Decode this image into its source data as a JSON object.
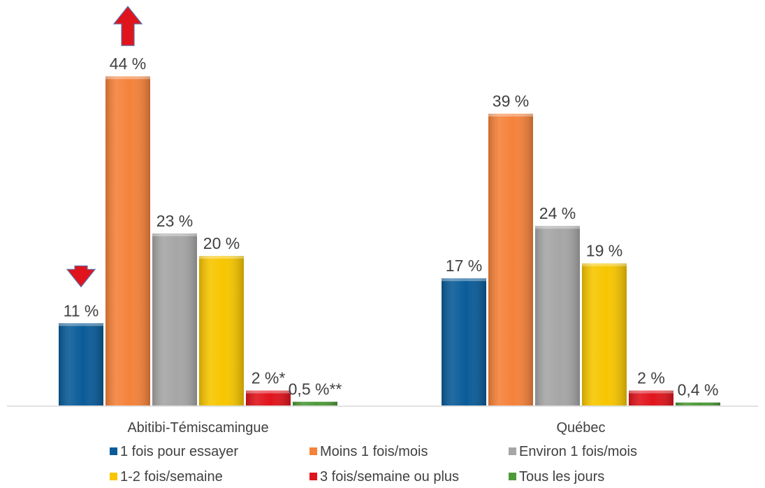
{
  "chart_data": {
    "type": "bar",
    "categories": [
      "Abitibi-Témiscamingue",
      "Québec"
    ],
    "series": [
      {
        "name": "1 fois pour essayer",
        "values": [
          11,
          17
        ],
        "labels": [
          "11 %",
          "17 %"
        ],
        "color": "#0a5c99"
      },
      {
        "name": "Moins 1 fois/mois",
        "values": [
          44,
          39
        ],
        "labels": [
          "44 %",
          "39 %"
        ],
        "color": "#f5823a"
      },
      {
        "name": "Environ 1 fois/mois",
        "values": [
          23,
          24
        ],
        "labels": [
          "23 %",
          "24 %"
        ],
        "color": "#a6a6a6"
      },
      {
        "name": "1-2 fois/semaine",
        "values": [
          20,
          19
        ],
        "labels": [
          "20 %",
          "19 %"
        ],
        "color": "#f7c600"
      },
      {
        "name": "3 fois/semaine ou plus",
        "values": [
          2,
          2
        ],
        "labels": [
          "2 %*",
          "2 %"
        ],
        "color": "#e0141c"
      },
      {
        "name": "Tous les jours",
        "values": [
          0.5,
          0.4
        ],
        "labels": [
          "0,5 %**",
          "0,4 %"
        ],
        "color": "#4e9a3a"
      }
    ],
    "annotations": [
      {
        "category": "Abitibi-Témiscamingue",
        "series": "Moins 1 fois/mois",
        "marker": "arrow-up",
        "color": "#e0141c"
      },
      {
        "category": "Abitibi-Témiscamingue",
        "series": "1 fois pour essayer",
        "marker": "arrow-down",
        "color": "#e0141c"
      }
    ],
    "ylim": [
      0,
      50
    ],
    "grid": false,
    "legend": "bottom"
  }
}
